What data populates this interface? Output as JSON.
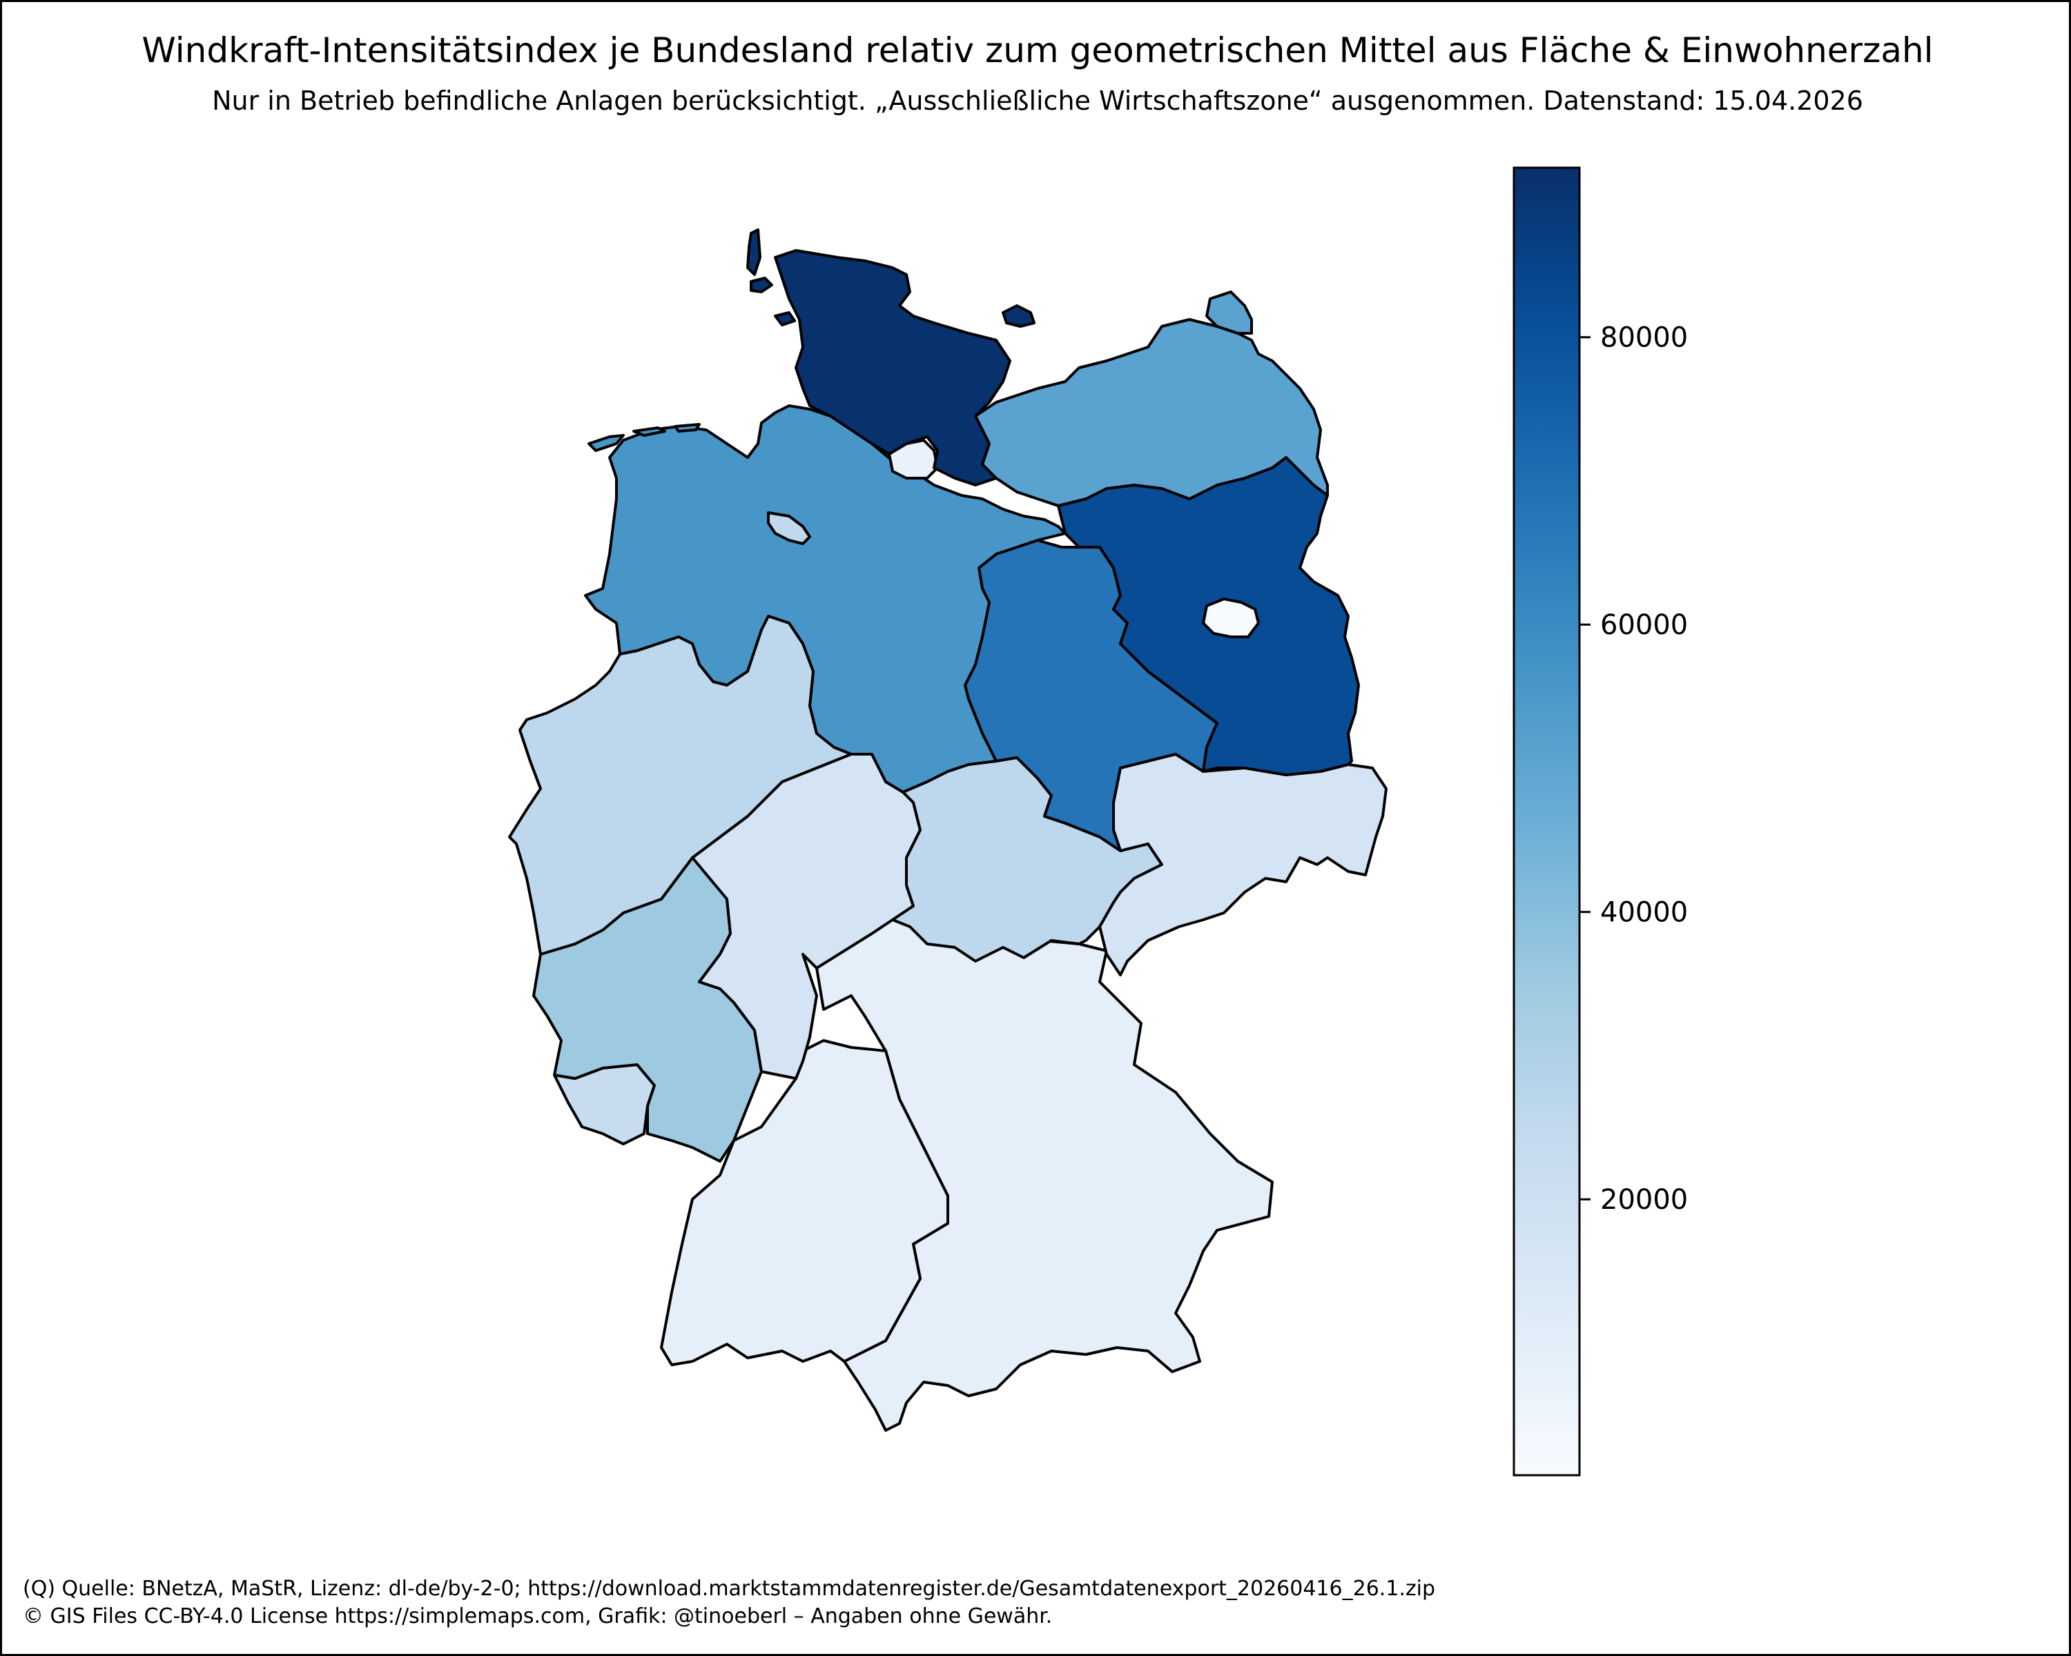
{
  "title": "Windkraft-Intensitätsindex je Bundesland relativ zum geometrischen Mittel aus Fläche & Einwohnerzahl",
  "subtitle": "Nur in Betrieb befindliche Anlagen berücksichtigt. „Ausschließliche Wirtschaftszone“ ausgenommen. Datenstand: 15.04.2026",
  "footer": {
    "line1": "(Q) Quelle: BNetzA, MaStR, Lizenz: dl-de/by-2-0; https://download.marktstammdatenregister.de/Gesamtdatenexport_20260416_26.1.zip",
    "line2": "© GIS Files CC-BY-4.0 License https://simplemaps.com, Grafik: @tinoeberl – Angaben ohne Gewähr."
  },
  "colormap": {
    "name": "Blues",
    "stops": [
      "#f7fbff",
      "#deebf7",
      "#c6dbef",
      "#9ecae1",
      "#6baed6",
      "#4292c6",
      "#2171b5",
      "#08519c",
      "#08306b"
    ]
  },
  "chart_data": {
    "type": "choropleth",
    "value_range": [
      800,
      91800
    ],
    "colorbar_ticks": [
      {
        "value": 20000,
        "label": "20000"
      },
      {
        "value": 40000,
        "label": "40000"
      },
      {
        "value": 60000,
        "label": "60000"
      },
      {
        "value": 80000,
        "label": "80000"
      }
    ],
    "regions": [
      {
        "id": "schleswig-holstein",
        "value": 91000
      },
      {
        "id": "mecklenburg-vorpommern",
        "value": 51000
      },
      {
        "id": "hamburg",
        "value": 7000
      },
      {
        "id": "bremen",
        "value": 25000
      },
      {
        "id": "niedersachsen",
        "value": 56000
      },
      {
        "id": "brandenburg",
        "value": 82000
      },
      {
        "id": "berlin",
        "value": 1000
      },
      {
        "id": "sachsen-anhalt",
        "value": 68000
      },
      {
        "id": "nordrhein-westfalen",
        "value": 26000
      },
      {
        "id": "hessen",
        "value": 17000
      },
      {
        "id": "thueringen",
        "value": 26000
      },
      {
        "id": "sachsen",
        "value": 17000
      },
      {
        "id": "rheinland-pfalz",
        "value": 35000
      },
      {
        "id": "saarland",
        "value": 23000
      },
      {
        "id": "baden-wuerttemberg",
        "value": 9000
      },
      {
        "id": "bayern",
        "value": 9000
      }
    ]
  }
}
